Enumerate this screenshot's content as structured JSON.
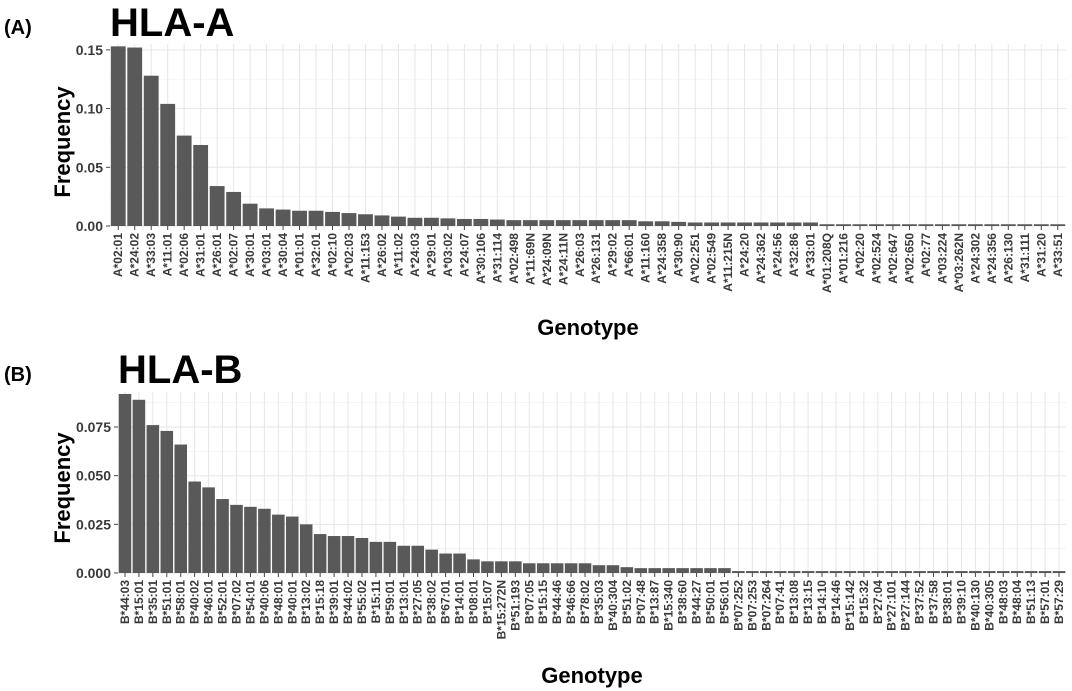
{
  "chart_data": [
    {
      "type": "bar",
      "panel_label": "(A)",
      "title": "HLA-A",
      "xlabel": "Genotype",
      "ylabel": "Frequency",
      "ylim": [
        0,
        0.155
      ],
      "yticks": [
        0.0,
        0.05,
        0.1,
        0.15
      ],
      "ytick_labels": [
        "0.00",
        "0.05",
        "0.10",
        "0.15"
      ],
      "bar_color": "#595959",
      "categories": [
        "A*02:01",
        "A*24:02",
        "A*33:03",
        "A*11:01",
        "A*02:06",
        "A*31:01",
        "A*26:01",
        "A*02:07",
        "A*30:01",
        "A*03:01",
        "A*30:04",
        "A*01:01",
        "A*32:01",
        "A*02:10",
        "A*02:03",
        "A*11:153",
        "A*26:02",
        "A*11:02",
        "A*24:03",
        "A*29:01",
        "A*03:02",
        "A*24:07",
        "A*30:106",
        "A*31:114",
        "A*02:498",
        "A*11:69N",
        "A*24:09N",
        "A*24:11N",
        "A*26:03",
        "A*26:131",
        "A*29:02",
        "A*66:01",
        "A*11:160",
        "A*24:358",
        "A*30:90",
        "A*02:251",
        "A*02:549",
        "A*11:215N",
        "A*24:20",
        "A*24:362",
        "A*24:56",
        "A*32:86",
        "A*33:01",
        "A*01:208Q",
        "A*01:216",
        "A*02:20",
        "A*02:524",
        "A*02:647",
        "A*02:650",
        "A*02:77",
        "A*03:224",
        "A*03:262N",
        "A*24:302",
        "A*24:356",
        "A*26:130",
        "A*31:111",
        "A*31:20",
        "A*33:51"
      ],
      "values": [
        0.153,
        0.152,
        0.128,
        0.104,
        0.077,
        0.069,
        0.034,
        0.029,
        0.019,
        0.015,
        0.014,
        0.013,
        0.013,
        0.012,
        0.011,
        0.01,
        0.009,
        0.008,
        0.007,
        0.007,
        0.0065,
        0.006,
        0.006,
        0.0055,
        0.005,
        0.005,
        0.005,
        0.005,
        0.005,
        0.005,
        0.005,
        0.005,
        0.004,
        0.004,
        0.0035,
        0.003,
        0.003,
        0.003,
        0.003,
        0.003,
        0.003,
        0.003,
        0.003,
        0.0015,
        0.0015,
        0.0015,
        0.0015,
        0.0015,
        0.0015,
        0.0015,
        0.0015,
        0.0015,
        0.0015,
        0.0015,
        0.0015,
        0.0015,
        0.0015,
        0.0015
      ]
    },
    {
      "type": "bar",
      "panel_label": "(B)",
      "title": "HLA-B",
      "xlabel": "Genotype",
      "ylabel": "Frequency",
      "ylim": [
        0,
        0.093
      ],
      "yticks": [
        0.0,
        0.025,
        0.05,
        0.075
      ],
      "ytick_labels": [
        "0.000",
        "0.025",
        "0.050",
        "0.075"
      ],
      "bar_color": "#595959",
      "categories": [
        "B*44:03",
        "B*15:01",
        "B*35:01",
        "B*51:01",
        "B*58:01",
        "B*40:02",
        "B*46:01",
        "B*52:01",
        "B*07:02",
        "B*54:01",
        "B*40:06",
        "B*48:01",
        "B*40:01",
        "B*13:02",
        "B*15:18",
        "B*39:01",
        "B*44:02",
        "B*55:02",
        "B*15:11",
        "B*59:01",
        "B*13:01",
        "B*27:05",
        "B*38:02",
        "B*67:01",
        "B*14:01",
        "B*08:01",
        "B*15:07",
        "B*15:272N",
        "B*51:193",
        "B*07:05",
        "B*15:15",
        "B*44:46",
        "B*46:66",
        "B*78:02",
        "B*35:03",
        "B*40:304",
        "B*51:02",
        "B*07:48",
        "B*13:87",
        "B*15:340",
        "B*38:60",
        "B*44:27",
        "B*50:01",
        "B*56:01",
        "B*07:252",
        "B*07:253",
        "B*07:264",
        "B*07:41",
        "B*13:08",
        "B*13:15",
        "B*14:10",
        "B*14:46",
        "B*15:142",
        "B*15:32",
        "B*27:04",
        "B*27:101",
        "B*27:144",
        "B*37:52",
        "B*37:58",
        "B*38:01",
        "B*39:10",
        "B*40:130",
        "B*40:305",
        "B*48:03",
        "B*48:04",
        "B*51:13",
        "B*57:01",
        "B*57:29"
      ],
      "values": [
        0.092,
        0.089,
        0.076,
        0.073,
        0.066,
        0.047,
        0.044,
        0.038,
        0.035,
        0.034,
        0.033,
        0.03,
        0.029,
        0.025,
        0.02,
        0.019,
        0.019,
        0.018,
        0.016,
        0.016,
        0.014,
        0.014,
        0.012,
        0.01,
        0.01,
        0.007,
        0.006,
        0.006,
        0.006,
        0.005,
        0.005,
        0.005,
        0.005,
        0.005,
        0.004,
        0.004,
        0.003,
        0.0025,
        0.0025,
        0.0025,
        0.0025,
        0.0025,
        0.0025,
        0.0025,
        0.001,
        0.001,
        0.001,
        0.001,
        0.001,
        0.001,
        0.001,
        0.001,
        0.001,
        0.001,
        0.001,
        0.001,
        0.001,
        0.001,
        0.001,
        0.001,
        0.001,
        0.001,
        0.001,
        0.001,
        0.001,
        0.001,
        0.001,
        0.001
      ]
    }
  ]
}
